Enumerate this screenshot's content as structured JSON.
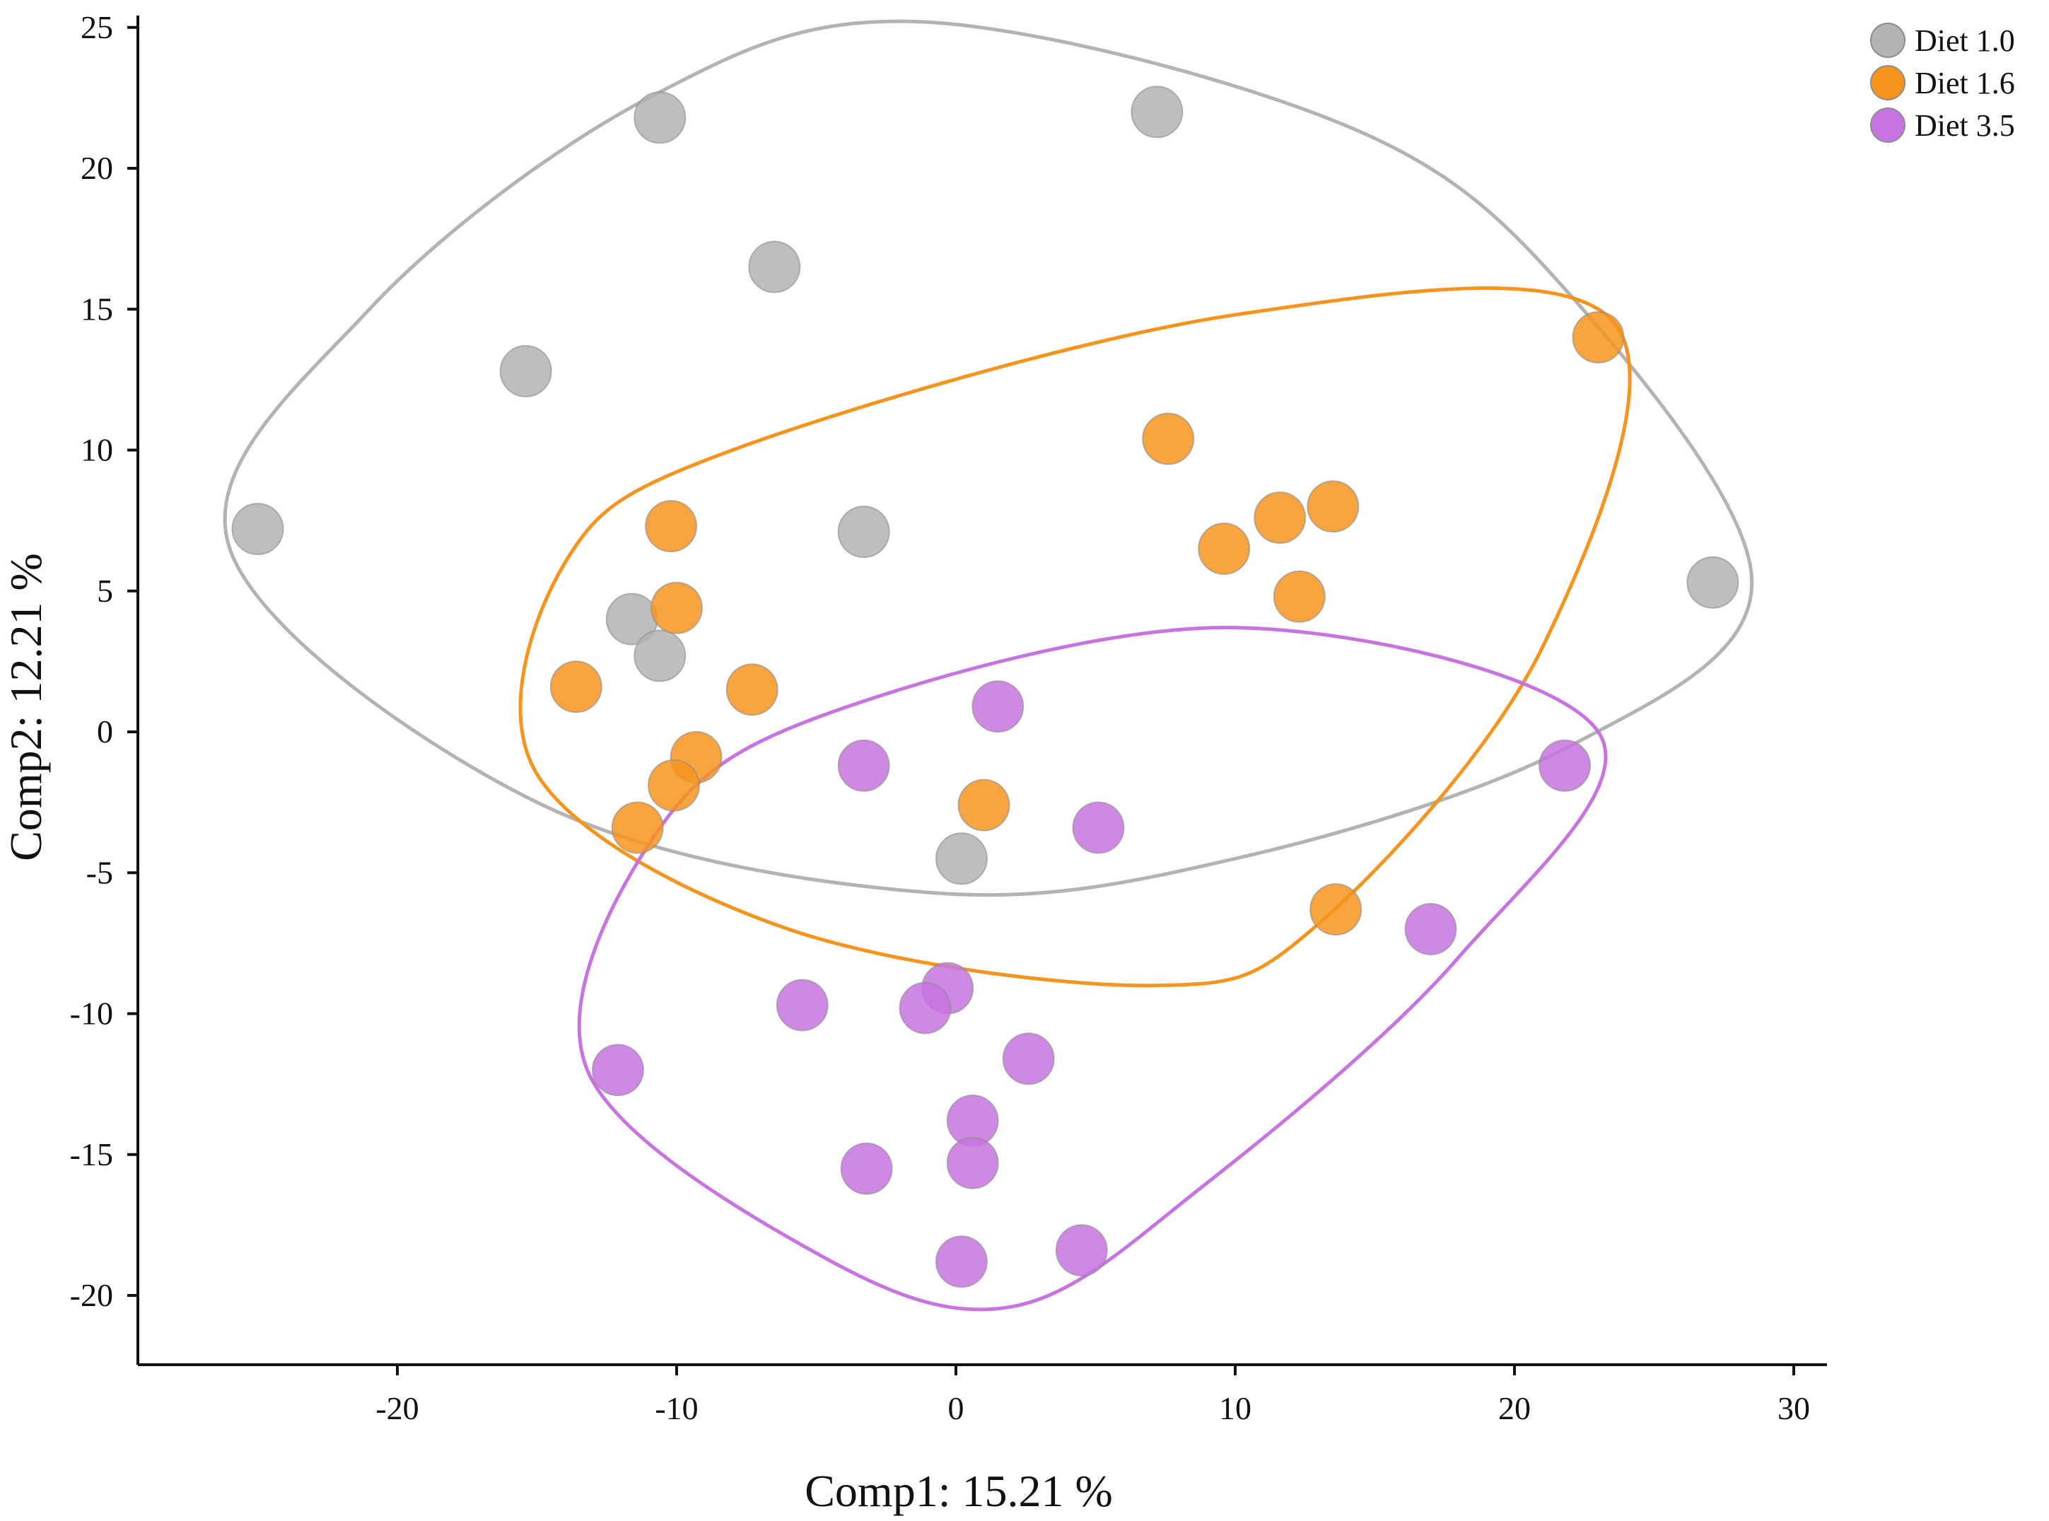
{
  "chart_data": {
    "type": "scatter",
    "title": "",
    "xlabel": "Comp1: 15.21 %",
    "ylabel": "Comp2: 12.21 %",
    "xlim": [
      -29.5,
      31
    ],
    "ylim": [
      -22.5,
      25.5
    ],
    "xticks": [
      -20,
      -10,
      0,
      10,
      20,
      30
    ],
    "yticks": [
      -20,
      -15,
      -10,
      -5,
      0,
      5,
      10,
      15,
      20,
      25
    ],
    "xtick_labels": [
      "-20",
      "-10",
      "0",
      "10",
      "20",
      "30"
    ],
    "ytick_labels": [
      "-20",
      "-15",
      "-10",
      "-5",
      "0",
      "5",
      "10",
      "15",
      "20",
      "25"
    ],
    "legend_position": "top-right",
    "series": [
      {
        "name": "Diet 1.0",
        "color": "#b3b3b3",
        "points": [
          {
            "x": -10.6,
            "y": 21.8
          },
          {
            "x": 7.2,
            "y": 22.0
          },
          {
            "x": -6.5,
            "y": 16.5
          },
          {
            "x": -15.4,
            "y": 12.8
          },
          {
            "x": -25.0,
            "y": 7.2
          },
          {
            "x": -3.3,
            "y": 7.1
          },
          {
            "x": 27.1,
            "y": 5.3
          },
          {
            "x": -11.6,
            "y": 4.0
          },
          {
            "x": -10.6,
            "y": 2.7
          },
          {
            "x": 0.2,
            "y": -4.5
          }
        ]
      },
      {
        "name": "Diet 1.6",
        "color": "#f7941d",
        "points": [
          {
            "x": 23.0,
            "y": 14.0
          },
          {
            "x": 7.6,
            "y": 10.4
          },
          {
            "x": 13.5,
            "y": 8.0
          },
          {
            "x": 11.6,
            "y": 7.6
          },
          {
            "x": 9.6,
            "y": 6.5
          },
          {
            "x": 12.3,
            "y": 4.8
          },
          {
            "x": -10.2,
            "y": 7.3
          },
          {
            "x": -10.0,
            "y": 4.4
          },
          {
            "x": -13.6,
            "y": 1.6
          },
          {
            "x": -7.3,
            "y": 1.5
          },
          {
            "x": -9.3,
            "y": -0.9
          },
          {
            "x": -10.1,
            "y": -1.9
          },
          {
            "x": -11.4,
            "y": -3.4
          },
          {
            "x": 1.0,
            "y": -2.6
          },
          {
            "x": 13.6,
            "y": -6.3
          }
        ]
      },
      {
        "name": "Diet 3.5",
        "color": "#c774e0",
        "points": [
          {
            "x": 1.5,
            "y": 0.9
          },
          {
            "x": -3.3,
            "y": -1.2
          },
          {
            "x": 5.1,
            "y": -3.4
          },
          {
            "x": 21.8,
            "y": -1.2
          },
          {
            "x": 17.0,
            "y": -7.0
          },
          {
            "x": -0.3,
            "y": -9.1
          },
          {
            "x": -1.1,
            "y": -9.8
          },
          {
            "x": -5.5,
            "y": -9.7
          },
          {
            "x": 2.6,
            "y": -11.6
          },
          {
            "x": -12.1,
            "y": -12.0
          },
          {
            "x": 0.6,
            "y": -13.8
          },
          {
            "x": 0.6,
            "y": -15.3
          },
          {
            "x": -3.2,
            "y": -15.5
          },
          {
            "x": 4.5,
            "y": -18.4
          },
          {
            "x": 0.2,
            "y": -18.8
          }
        ]
      }
    ],
    "ellipses": [
      {
        "name": "Diet 1.0 boundary",
        "color": "#b3b3b3",
        "path": [
          [
            -1.3,
            25.2
          ],
          [
            14,
            21.5
          ],
          [
            22,
            15.5
          ],
          [
            28.5,
            5.3
          ],
          [
            22,
            -0.5
          ],
          [
            10,
            -4.5
          ],
          [
            -1,
            -5.7
          ],
          [
            -15,
            -2.5
          ],
          [
            -26,
            6.5
          ],
          [
            -21,
            15
          ],
          [
            -11,
            22.5
          ]
        ]
      },
      {
        "name": "Diet 1.6 boundary",
        "color": "#f7941d",
        "path": [
          [
            -8,
            10
          ],
          [
            10,
            14.8
          ],
          [
            23.5,
            14.6
          ],
          [
            21,
            3
          ],
          [
            13,
            -6.8
          ],
          [
            7,
            -9
          ],
          [
            -6,
            -7
          ],
          [
            -15,
            -1.5
          ],
          [
            -14,
            6
          ]
        ]
      },
      {
        "name": "Diet 3.5 boundary",
        "color": "#c774e0",
        "path": [
          [
            -5,
            0.5
          ],
          [
            10,
            3.7
          ],
          [
            23,
            0
          ],
          [
            18,
            -8
          ],
          [
            9,
            -16
          ],
          [
            2,
            -20.4
          ],
          [
            -5,
            -18.5
          ],
          [
            -13.2,
            -12
          ],
          [
            -11,
            -4
          ]
        ]
      }
    ]
  }
}
